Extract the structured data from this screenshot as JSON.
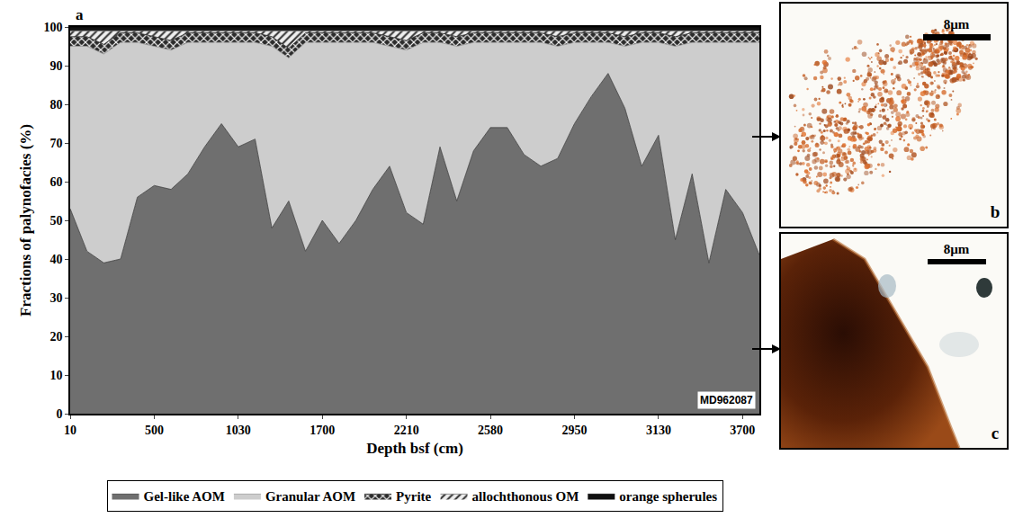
{
  "chart_data": {
    "type": "area",
    "stacked": true,
    "xlabel": "Depth bsf (cm)",
    "ylabel": "Fractions of palynofacies (%)",
    "categories": [
      "10",
      null,
      null,
      null,
      null,
      "500",
      null,
      null,
      null,
      null,
      "1030",
      null,
      null,
      null,
      null,
      "1700",
      null,
      null,
      null,
      null,
      "2210",
      null,
      null,
      null,
      null,
      "2580",
      null,
      null,
      null,
      null,
      "2950",
      null,
      null,
      null,
      null,
      "3130",
      null,
      null,
      null,
      null,
      "3700",
      null
    ],
    "ylim": [
      0,
      100
    ],
    "yticks": [
      0,
      10,
      20,
      30,
      40,
      50,
      60,
      70,
      80,
      90,
      100
    ],
    "grid": false,
    "legend": "bottom",
    "series": [
      {
        "name": "Gel-like AOM",
        "color": "#6f6f6f",
        "values": [
          53,
          42,
          39,
          40,
          56,
          59,
          58,
          62,
          69,
          75,
          69,
          71,
          48,
          55,
          42,
          50,
          44,
          50,
          58,
          64,
          52,
          49,
          69,
          55,
          68,
          74,
          74,
          67,
          64,
          66,
          75,
          82,
          88,
          79,
          64,
          72,
          45,
          62,
          39,
          58,
          52,
          41
        ]
      },
      {
        "name": "Granular AOM",
        "color": "#cdcdcd",
        "values": [
          42,
          53,
          54,
          56,
          40,
          36,
          36,
          34,
          27,
          21,
          27,
          25,
          47,
          37,
          54,
          46,
          52,
          46,
          38,
          31,
          42,
          47,
          27,
          40,
          28,
          22,
          22,
          29,
          32,
          29,
          21,
          14,
          8,
          16,
          32,
          24,
          50,
          34,
          57,
          38,
          44,
          55
        ]
      },
      {
        "name": "Pyrite",
        "color": "#2b2b2b",
        "values": [
          2.5,
          2.5,
          2.5,
          2.5,
          2.5,
          2.5,
          2.5,
          2.5,
          2.5,
          2.5,
          2.5,
          2.5,
          2.5,
          2.5,
          2.5,
          2.5,
          2.5,
          2.5,
          2.5,
          2.5,
          2.5,
          2.5,
          2.5,
          2.5,
          2.5,
          2.5,
          2.5,
          2.5,
          2.5,
          2.5,
          2.5,
          2.5,
          2.5,
          2.5,
          2.5,
          2.5,
          2.5,
          2.5,
          2.5,
          2.5,
          2.5,
          2.5
        ]
      },
      {
        "name": "allochthonous OM",
        "color": "#eeeeee",
        "values": [
          1.5,
          1.5,
          3.5,
          0.5,
          0.5,
          1.5,
          2.5,
          0.5,
          0.5,
          0.5,
          0.5,
          0.5,
          1.5,
          4.5,
          0.5,
          0.5,
          0.5,
          0.5,
          0.5,
          1.5,
          2.5,
          0.5,
          0.5,
          1.5,
          0.5,
          0.5,
          0.5,
          0.5,
          0.5,
          1.5,
          0.5,
          0.5,
          0.5,
          1.5,
          0.5,
          0.5,
          1.5,
          0.5,
          0.5,
          0.5,
          0.5,
          0.5
        ]
      },
      {
        "name": "orange spherules",
        "color": "#111111",
        "values": [
          1,
          1,
          1,
          1,
          1,
          1,
          1,
          1,
          1,
          1,
          1,
          1,
          1,
          1,
          1,
          1,
          1,
          1,
          1,
          1,
          1,
          1,
          1,
          1,
          1,
          1,
          1,
          1,
          1,
          1,
          1,
          1,
          1,
          1,
          1,
          1,
          1,
          1,
          1,
          1,
          1,
          1
        ]
      }
    ],
    "annotations": {
      "panel_label": "a",
      "core": "MD962087"
    }
  },
  "micrographs": [
    {
      "label": "b",
      "scale_bar": "8µm"
    },
    {
      "label": "c",
      "scale_bar": "8µm"
    }
  ]
}
